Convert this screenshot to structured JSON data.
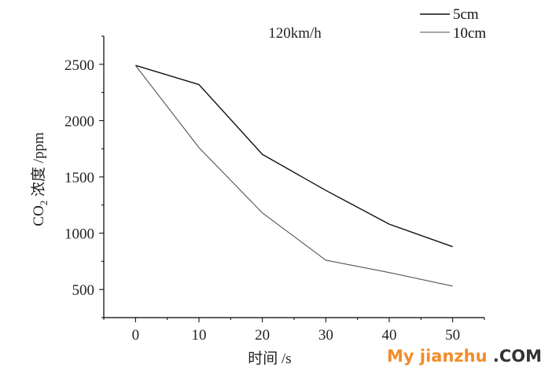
{
  "chart_data": {
    "type": "line",
    "title": "120km/h",
    "xlabel": "时间 /s",
    "ylabel_main": "CO",
    "ylabel_sub": "2",
    "ylabel_rest": " 浓度 /ppm",
    "xlim": [
      -5,
      55
    ],
    "ylim": [
      250,
      2750
    ],
    "x_ticks": [
      0,
      10,
      20,
      30,
      40,
      50
    ],
    "y_ticks": [
      500,
      1000,
      1500,
      2000,
      2500
    ],
    "x": [
      0,
      10,
      20,
      30,
      40,
      50
    ],
    "series": [
      {
        "name": "5cm",
        "values": [
          2490,
          2320,
          1700,
          1380,
          1080,
          880
        ],
        "color": "#111111"
      },
      {
        "name": "10cm",
        "values": [
          2490,
          1760,
          1180,
          760,
          650,
          530
        ],
        "color": "#555555"
      }
    ],
    "legend_position": "top-right",
    "grid": false
  },
  "watermark": {
    "part1": "My jianzhu",
    "part2": " .COM"
  }
}
